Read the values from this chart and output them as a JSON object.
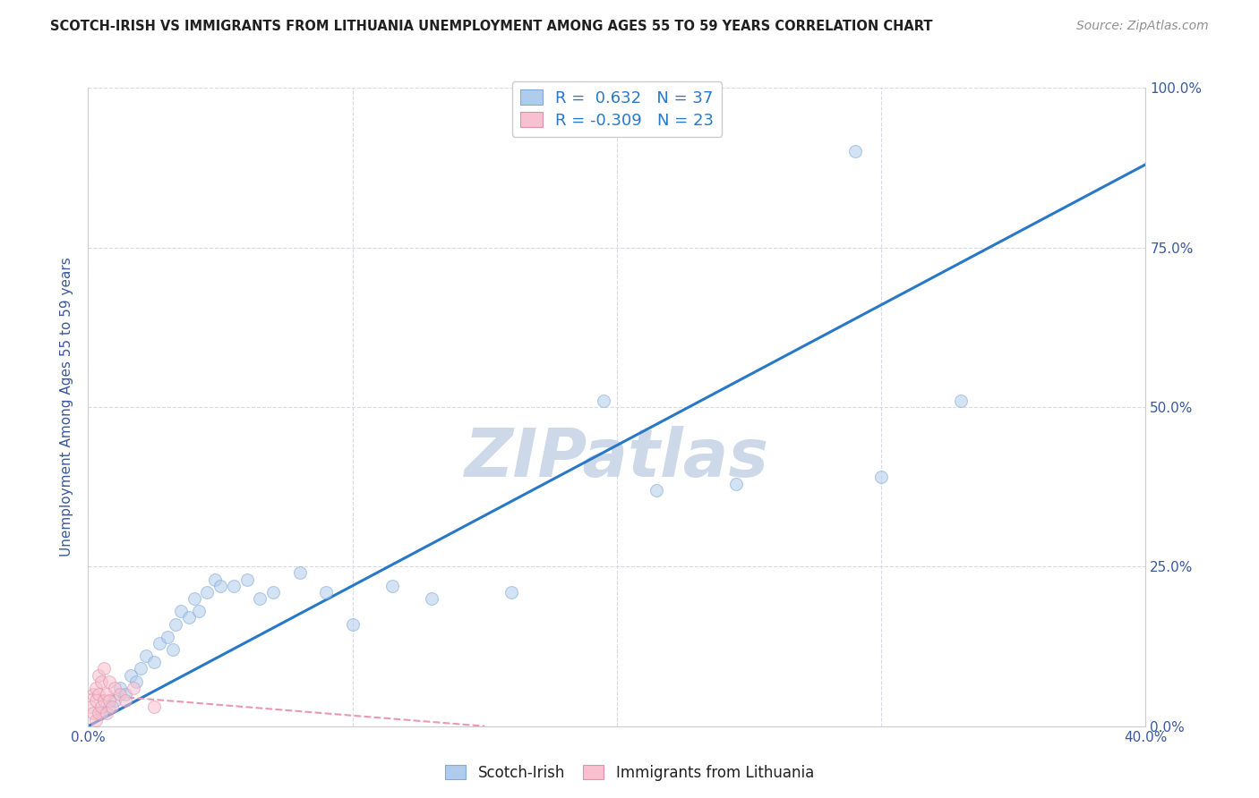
{
  "title": "SCOTCH-IRISH VS IMMIGRANTS FROM LITHUANIA UNEMPLOYMENT AMONG AGES 55 TO 59 YEARS CORRELATION CHART",
  "source": "Source: ZipAtlas.com",
  "ylabel": "Unemployment Among Ages 55 to 59 years",
  "xmin": 0.0,
  "xmax": 0.4,
  "ymin": 0.0,
  "ymax": 1.0,
  "yticks": [
    0.0,
    0.25,
    0.5,
    0.75,
    1.0
  ],
  "ytick_labels": [
    "0.0%",
    "25.0%",
    "50.0%",
    "75.0%",
    "100.0%"
  ],
  "watermark": "ZIPatlas",
  "watermark_color": "#cdd8e8",
  "blue_scatter_x": [
    0.005,
    0.008,
    0.01,
    0.012,
    0.014,
    0.016,
    0.018,
    0.02,
    0.022,
    0.025,
    0.027,
    0.03,
    0.032,
    0.033,
    0.035,
    0.038,
    0.04,
    0.042,
    0.045,
    0.048,
    0.05,
    0.055,
    0.06,
    0.065,
    0.07,
    0.08,
    0.09,
    0.1,
    0.115,
    0.13,
    0.16,
    0.195,
    0.215,
    0.245,
    0.3,
    0.33
  ],
  "blue_scatter_y": [
    0.02,
    0.03,
    0.04,
    0.06,
    0.05,
    0.08,
    0.07,
    0.09,
    0.11,
    0.1,
    0.13,
    0.14,
    0.12,
    0.16,
    0.18,
    0.17,
    0.2,
    0.18,
    0.21,
    0.23,
    0.22,
    0.22,
    0.23,
    0.2,
    0.21,
    0.24,
    0.21,
    0.16,
    0.22,
    0.2,
    0.21,
    0.51,
    0.37,
    0.38,
    0.39,
    0.51
  ],
  "blue_scatter_x2": [
    0.29
  ],
  "blue_scatter_y2": [
    0.9
  ],
  "pink_scatter_x": [
    0.001,
    0.002,
    0.002,
    0.003,
    0.003,
    0.003,
    0.004,
    0.004,
    0.004,
    0.005,
    0.005,
    0.006,
    0.006,
    0.007,
    0.007,
    0.008,
    0.008,
    0.009,
    0.01,
    0.012,
    0.014,
    0.017,
    0.025
  ],
  "pink_scatter_y": [
    0.03,
    0.02,
    0.05,
    0.01,
    0.04,
    0.06,
    0.02,
    0.05,
    0.08,
    0.03,
    0.07,
    0.04,
    0.09,
    0.05,
    0.02,
    0.04,
    0.07,
    0.03,
    0.06,
    0.05,
    0.04,
    0.06,
    0.03
  ],
  "blue_line_x": [
    0.0,
    0.4
  ],
  "blue_line_y": [
    0.0,
    0.88
  ],
  "pink_line_x": [
    0.0,
    0.15
  ],
  "pink_line_y": [
    0.05,
    0.0
  ],
  "scatter_size": 100,
  "scatter_alpha": 0.55,
  "line_color_blue": "#2878c8",
  "line_color_pink": "#e898b0",
  "scatter_color_blue": "#b0ccec",
  "scatter_color_pink": "#f8c0d0",
  "scatter_edgecolor_blue": "#80a8d8",
  "scatter_edgecolor_pink": "#e090a8",
  "legend_color1": "#b0ccec",
  "legend_color2": "#f8c0d0",
  "bg_color": "#ffffff",
  "grid_color": "#d8d8e8",
  "title_color": "#202020",
  "axis_label_color": "#3858a0",
  "tick_label_color": "#3858a0"
}
